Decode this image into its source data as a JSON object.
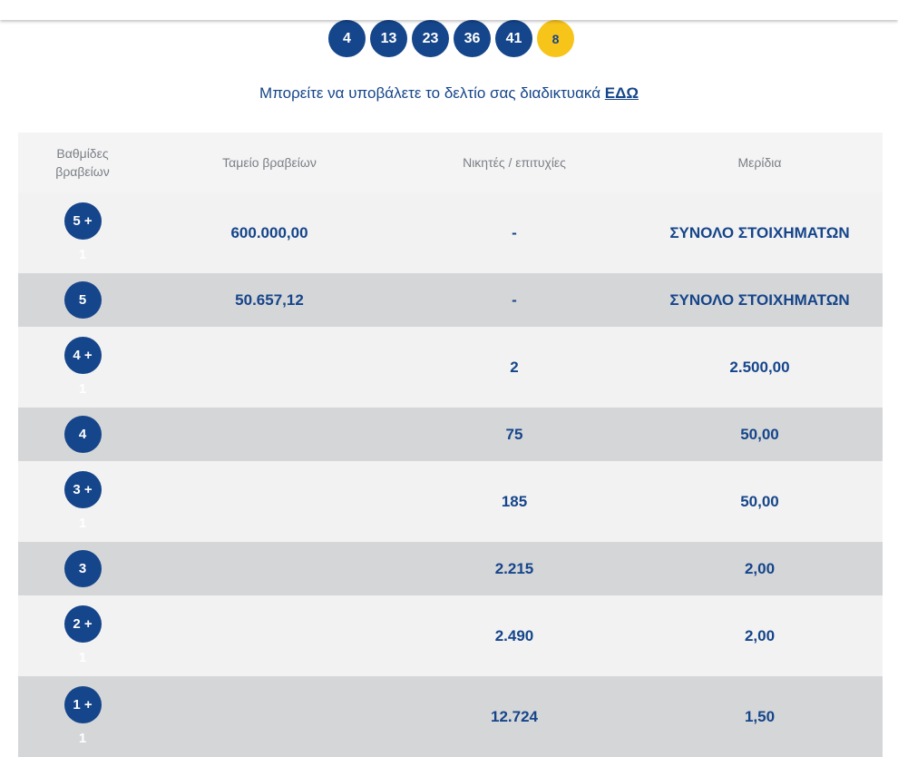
{
  "colors": {
    "primary": "#15458a",
    "joker": "#f7c41a",
    "row_light": "#f2f2f2",
    "row_dark": "#d5d6d8",
    "header_bg": "#f4f4f4"
  },
  "draw": {
    "numbers": [
      "4",
      "13",
      "23",
      "36",
      "41"
    ],
    "joker": "8"
  },
  "submit": {
    "text": "Μπορείτε να υποβάλετε το δελτίο σας διαδικτυακά",
    "link": "ΕΔΩ"
  },
  "table": {
    "headers": [
      "Βαθμίδες βραβείων",
      "Ταμείο βραβείων",
      "Νικητές / επιτυχίες",
      "Μερίδια"
    ],
    "rows": [
      {
        "tier": "5 +",
        "joker": "1",
        "fund": "600.000,00",
        "winners": "-",
        "share": "ΣΥΝΟΛΟ ΣΤΟΙΧΗΜΑΤΩΝ"
      },
      {
        "tier": "5",
        "joker": "",
        "fund": "50.657,12",
        "winners": "-",
        "share": "ΣΥΝΟΛΟ ΣΤΟΙΧΗΜΑΤΩΝ"
      },
      {
        "tier": "4 +",
        "joker": "1",
        "fund": "",
        "winners": "2",
        "share": "2.500,00"
      },
      {
        "tier": "4",
        "joker": "",
        "fund": "",
        "winners": "75",
        "share": "50,00"
      },
      {
        "tier": "3 +",
        "joker": "1",
        "fund": "",
        "winners": "185",
        "share": "50,00"
      },
      {
        "tier": "3",
        "joker": "",
        "fund": "",
        "winners": "2.215",
        "share": "2,00"
      },
      {
        "tier": "2 +",
        "joker": "1",
        "fund": "",
        "winners": "2.490",
        "share": "2,00"
      },
      {
        "tier": "1 +",
        "joker": "1",
        "fund": "",
        "winners": "12.724",
        "share": "1,50"
      }
    ]
  }
}
